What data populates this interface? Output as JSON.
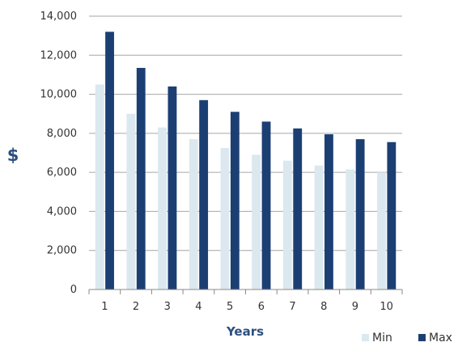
{
  "chart_data": {
    "type": "bar",
    "title": "",
    "xlabel": "Years",
    "ylabel": "$",
    "categories": [
      "1",
      "2",
      "3",
      "4",
      "5",
      "6",
      "7",
      "8",
      "9",
      "10"
    ],
    "series": [
      {
        "name": "Min",
        "color": "#dbe8ef",
        "values": [
          10500,
          9000,
          8300,
          7700,
          7250,
          6900,
          6600,
          6350,
          6150,
          6000
        ]
      },
      {
        "name": "Max",
        "color": "#1c3f73",
        "values": [
          13200,
          11350,
          10400,
          9700,
          9100,
          8600,
          8250,
          7950,
          7700,
          7550
        ]
      }
    ],
    "ylim": [
      0,
      14000
    ],
    "yticks": [
      0,
      2000,
      4000,
      6000,
      8000,
      10000,
      12000,
      14000
    ],
    "ytick_labels": [
      "0",
      "2,000",
      "4,000",
      "6,000",
      "8,000",
      "10,000",
      "12,000",
      "14,000"
    ],
    "grid": true,
    "legend": "bottom-right",
    "label_color": "#2c4f80"
  }
}
